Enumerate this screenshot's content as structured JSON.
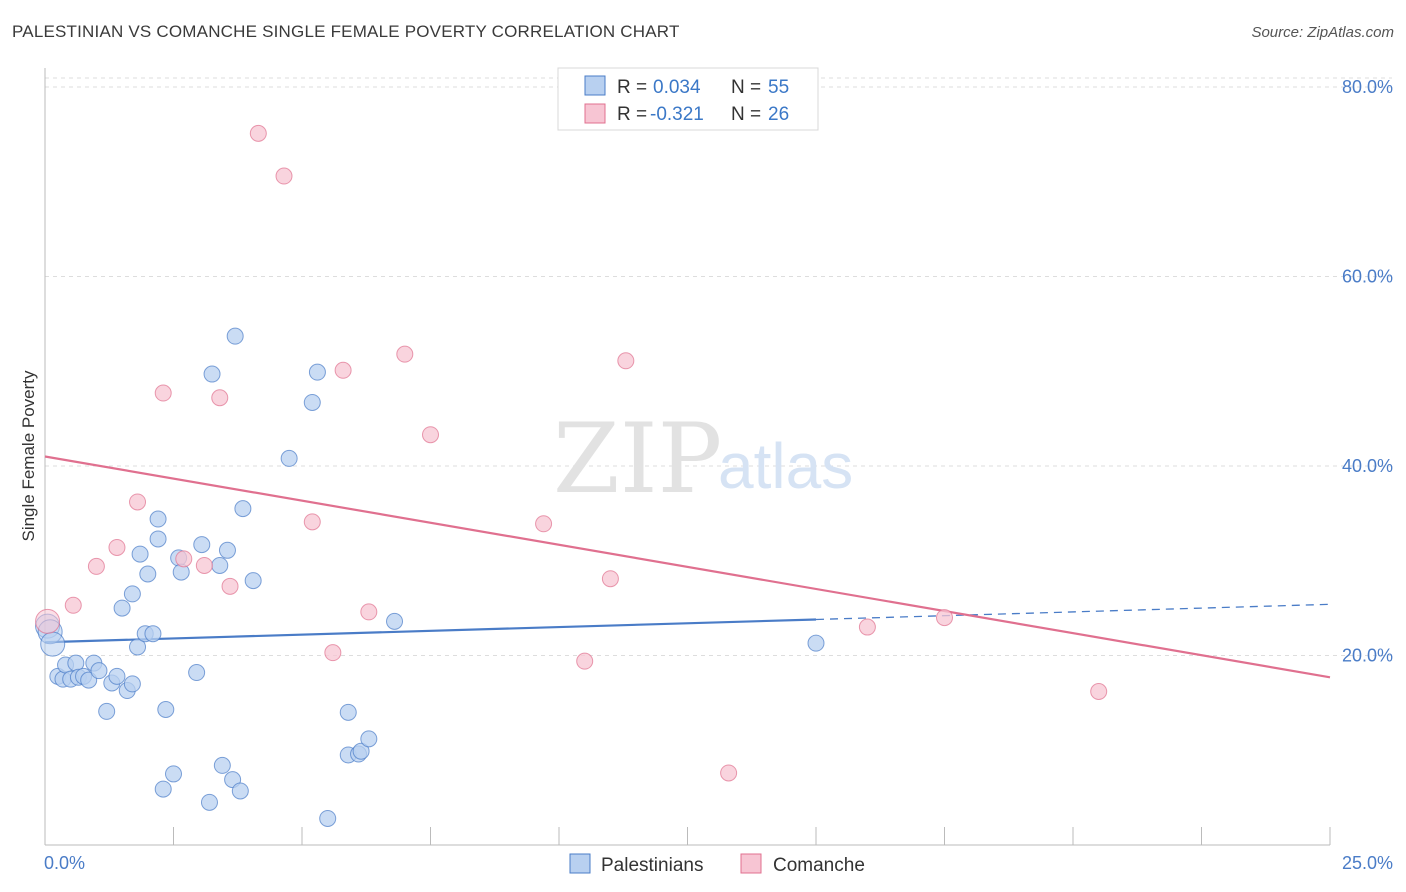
{
  "title": "PALESTINIAN VS COMANCHE SINGLE FEMALE POVERTY CORRELATION CHART",
  "source": "Source: ZipAtlas.com",
  "watermark": {
    "zip": "ZIP",
    "atlas": "atlas"
  },
  "legend": {
    "row1": {
      "r_label": "R =",
      "r_value": "0.034",
      "n_label": "N =",
      "n_value": "55"
    },
    "row2": {
      "r_label": "R =",
      "r_value": "-0.321",
      "n_label": "N =",
      "n_value": "26"
    }
  },
  "chart_data": {
    "type": "scatter",
    "title": "PALESTINIAN VS COMANCHE SINGLE FEMALE POVERTY CORRELATION CHART",
    "xlabel": "",
    "ylabel": "Single Female Poverty",
    "xlim": [
      0,
      25
    ],
    "ylim": [
      0,
      82
    ],
    "x_tick_labels": [
      "0.0%",
      "25.0%"
    ],
    "y_ticks": [
      20,
      40,
      60,
      80
    ],
    "y_tick_labels": [
      "20.0%",
      "40.0%",
      "60.0%",
      "80.0%"
    ],
    "grid": true,
    "legend_position": "top-center",
    "series": [
      {
        "name": "Palestinians",
        "color": "#4a7cc7",
        "fill": "#b8d0f0",
        "points": [
          [
            0.05,
            23.1
          ],
          [
            0.1,
            22.5
          ],
          [
            0.15,
            21.2
          ],
          [
            0.25,
            17.8
          ],
          [
            0.35,
            17.5
          ],
          [
            0.4,
            19.0
          ],
          [
            0.5,
            17.5
          ],
          [
            0.6,
            19.2
          ],
          [
            0.65,
            17.7
          ],
          [
            0.75,
            17.8
          ],
          [
            0.85,
            17.4
          ],
          [
            0.95,
            19.2
          ],
          [
            1.05,
            18.4
          ],
          [
            1.2,
            14.1
          ],
          [
            1.3,
            17.1
          ],
          [
            1.4,
            17.8
          ],
          [
            1.5,
            25.0
          ],
          [
            1.6,
            16.3
          ],
          [
            1.7,
            17.0
          ],
          [
            1.7,
            26.5
          ],
          [
            1.8,
            20.9
          ],
          [
            1.85,
            30.7
          ],
          [
            1.95,
            22.3
          ],
          [
            2.0,
            28.6
          ],
          [
            2.1,
            22.3
          ],
          [
            2.2,
            32.3
          ],
          [
            2.2,
            34.4
          ],
          [
            2.3,
            5.9
          ],
          [
            2.35,
            14.3
          ],
          [
            2.5,
            7.5
          ],
          [
            2.6,
            30.3
          ],
          [
            2.65,
            28.8
          ],
          [
            2.95,
            18.2
          ],
          [
            3.05,
            31.7
          ],
          [
            3.2,
            4.5
          ],
          [
            3.25,
            49.7
          ],
          [
            3.4,
            29.5
          ],
          [
            3.45,
            8.4
          ],
          [
            3.55,
            31.1
          ],
          [
            3.65,
            6.9
          ],
          [
            3.7,
            53.7
          ],
          [
            3.8,
            5.7
          ],
          [
            3.85,
            35.5
          ],
          [
            4.05,
            27.9
          ],
          [
            4.75,
            40.8
          ],
          [
            5.2,
            46.7
          ],
          [
            5.3,
            49.9
          ],
          [
            5.5,
            2.8
          ],
          [
            5.9,
            14.0
          ],
          [
            5.9,
            9.5
          ],
          [
            6.1,
            9.6
          ],
          [
            6.15,
            9.9
          ],
          [
            6.3,
            11.2
          ],
          [
            6.8,
            23.6
          ],
          [
            15.0,
            21.3
          ]
        ]
      },
      {
        "name": "Comanche",
        "color": "#e0708f",
        "fill": "#f7c5d3",
        "points": [
          [
            0.05,
            23.6
          ],
          [
            0.55,
            25.3
          ],
          [
            1.0,
            29.4
          ],
          [
            1.4,
            31.4
          ],
          [
            1.8,
            36.2
          ],
          [
            2.3,
            47.7
          ],
          [
            2.7,
            30.2
          ],
          [
            3.1,
            29.5
          ],
          [
            3.4,
            47.2
          ],
          [
            3.6,
            27.3
          ],
          [
            4.15,
            75.1
          ],
          [
            4.65,
            70.6
          ],
          [
            5.2,
            34.1
          ],
          [
            5.6,
            20.3
          ],
          [
            5.8,
            50.1
          ],
          [
            6.3,
            24.6
          ],
          [
            7.0,
            51.8
          ],
          [
            7.5,
            43.3
          ],
          [
            9.7,
            33.9
          ],
          [
            10.5,
            19.4
          ],
          [
            11.0,
            28.1
          ],
          [
            11.3,
            51.1
          ],
          [
            13.3,
            7.6
          ],
          [
            16.0,
            23.0
          ],
          [
            17.5,
            24.0
          ],
          [
            20.5,
            16.2
          ]
        ]
      }
    ],
    "trendlines": [
      {
        "series": "Palestinians",
        "x_start": 0,
        "y_start": 21.4,
        "x_end": 15.0,
        "y_end": 23.8,
        "dashed_extension_to": [
          25,
          25.4
        ]
      },
      {
        "series": "Comanche",
        "x_start": 0,
        "y_start": 41.0,
        "x_end": 25,
        "y_end": 17.7
      }
    ]
  },
  "bottom_legend": [
    "Palestinians",
    "Comanche"
  ]
}
